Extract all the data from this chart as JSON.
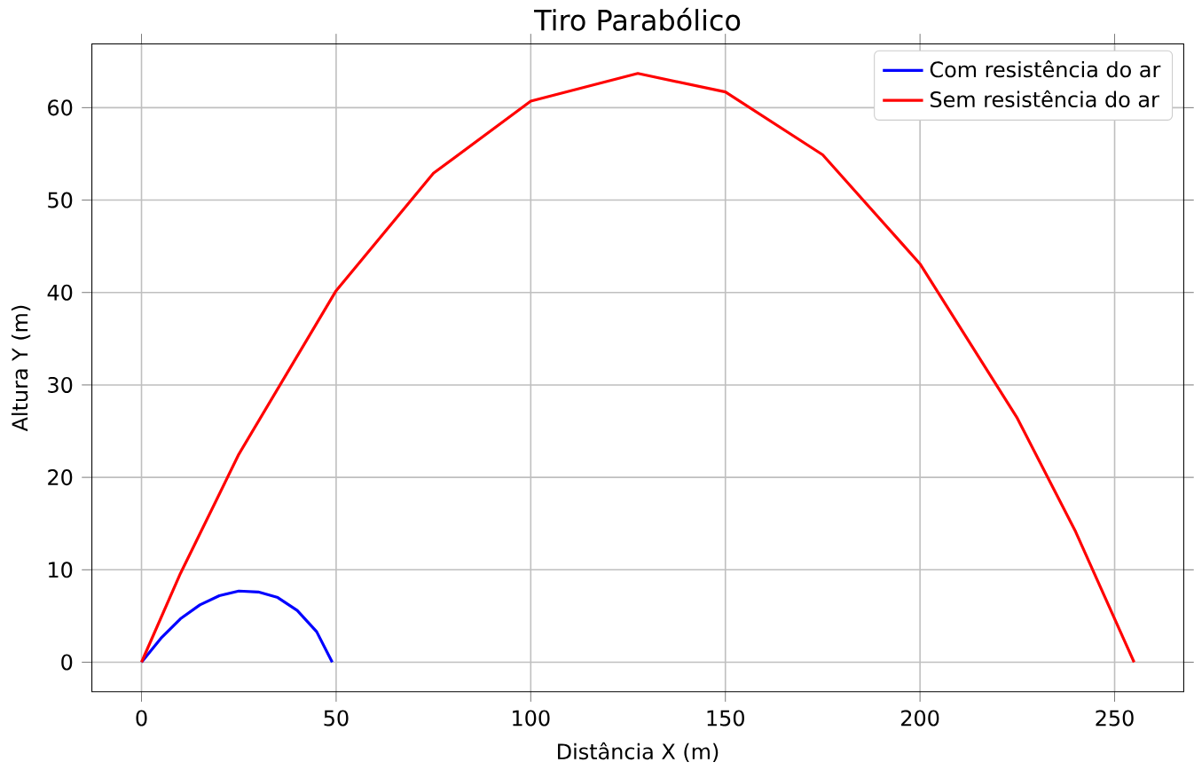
{
  "chart_data": {
    "type": "line",
    "title": "Tiro Parabólico",
    "xlabel": "Distância X (m)",
    "ylabel": "Altura Y (m)",
    "series": [
      {
        "name": "Com resistência do ar",
        "color": "#0000ff",
        "x": [
          0,
          5,
          10,
          15,
          20,
          25,
          30,
          35,
          40,
          45,
          49
        ],
        "values": [
          0,
          2.6,
          4.7,
          6.2,
          7.2,
          7.7,
          7.6,
          7.0,
          5.6,
          3.3,
          0
        ]
      },
      {
        "name": "Sem resistência do ar",
        "color": "#ff0000",
        "x": [
          0,
          10,
          25,
          50,
          75,
          100,
          127.5,
          150,
          175,
          200,
          225,
          240,
          255
        ],
        "values": [
          0,
          9.6,
          22.5,
          40.2,
          52.9,
          60.7,
          63.7,
          61.7,
          54.9,
          43.1,
          26.4,
          14.1,
          0
        ]
      }
    ],
    "xlim": [
      -12.75,
      267.75
    ],
    "ylim": [
      -3.19,
      66.9
    ],
    "xticks": [
      0,
      50,
      100,
      150,
      200,
      250
    ],
    "yticks": [
      0,
      10,
      20,
      30,
      40,
      50,
      60
    ],
    "grid": true,
    "legend": "top right"
  }
}
